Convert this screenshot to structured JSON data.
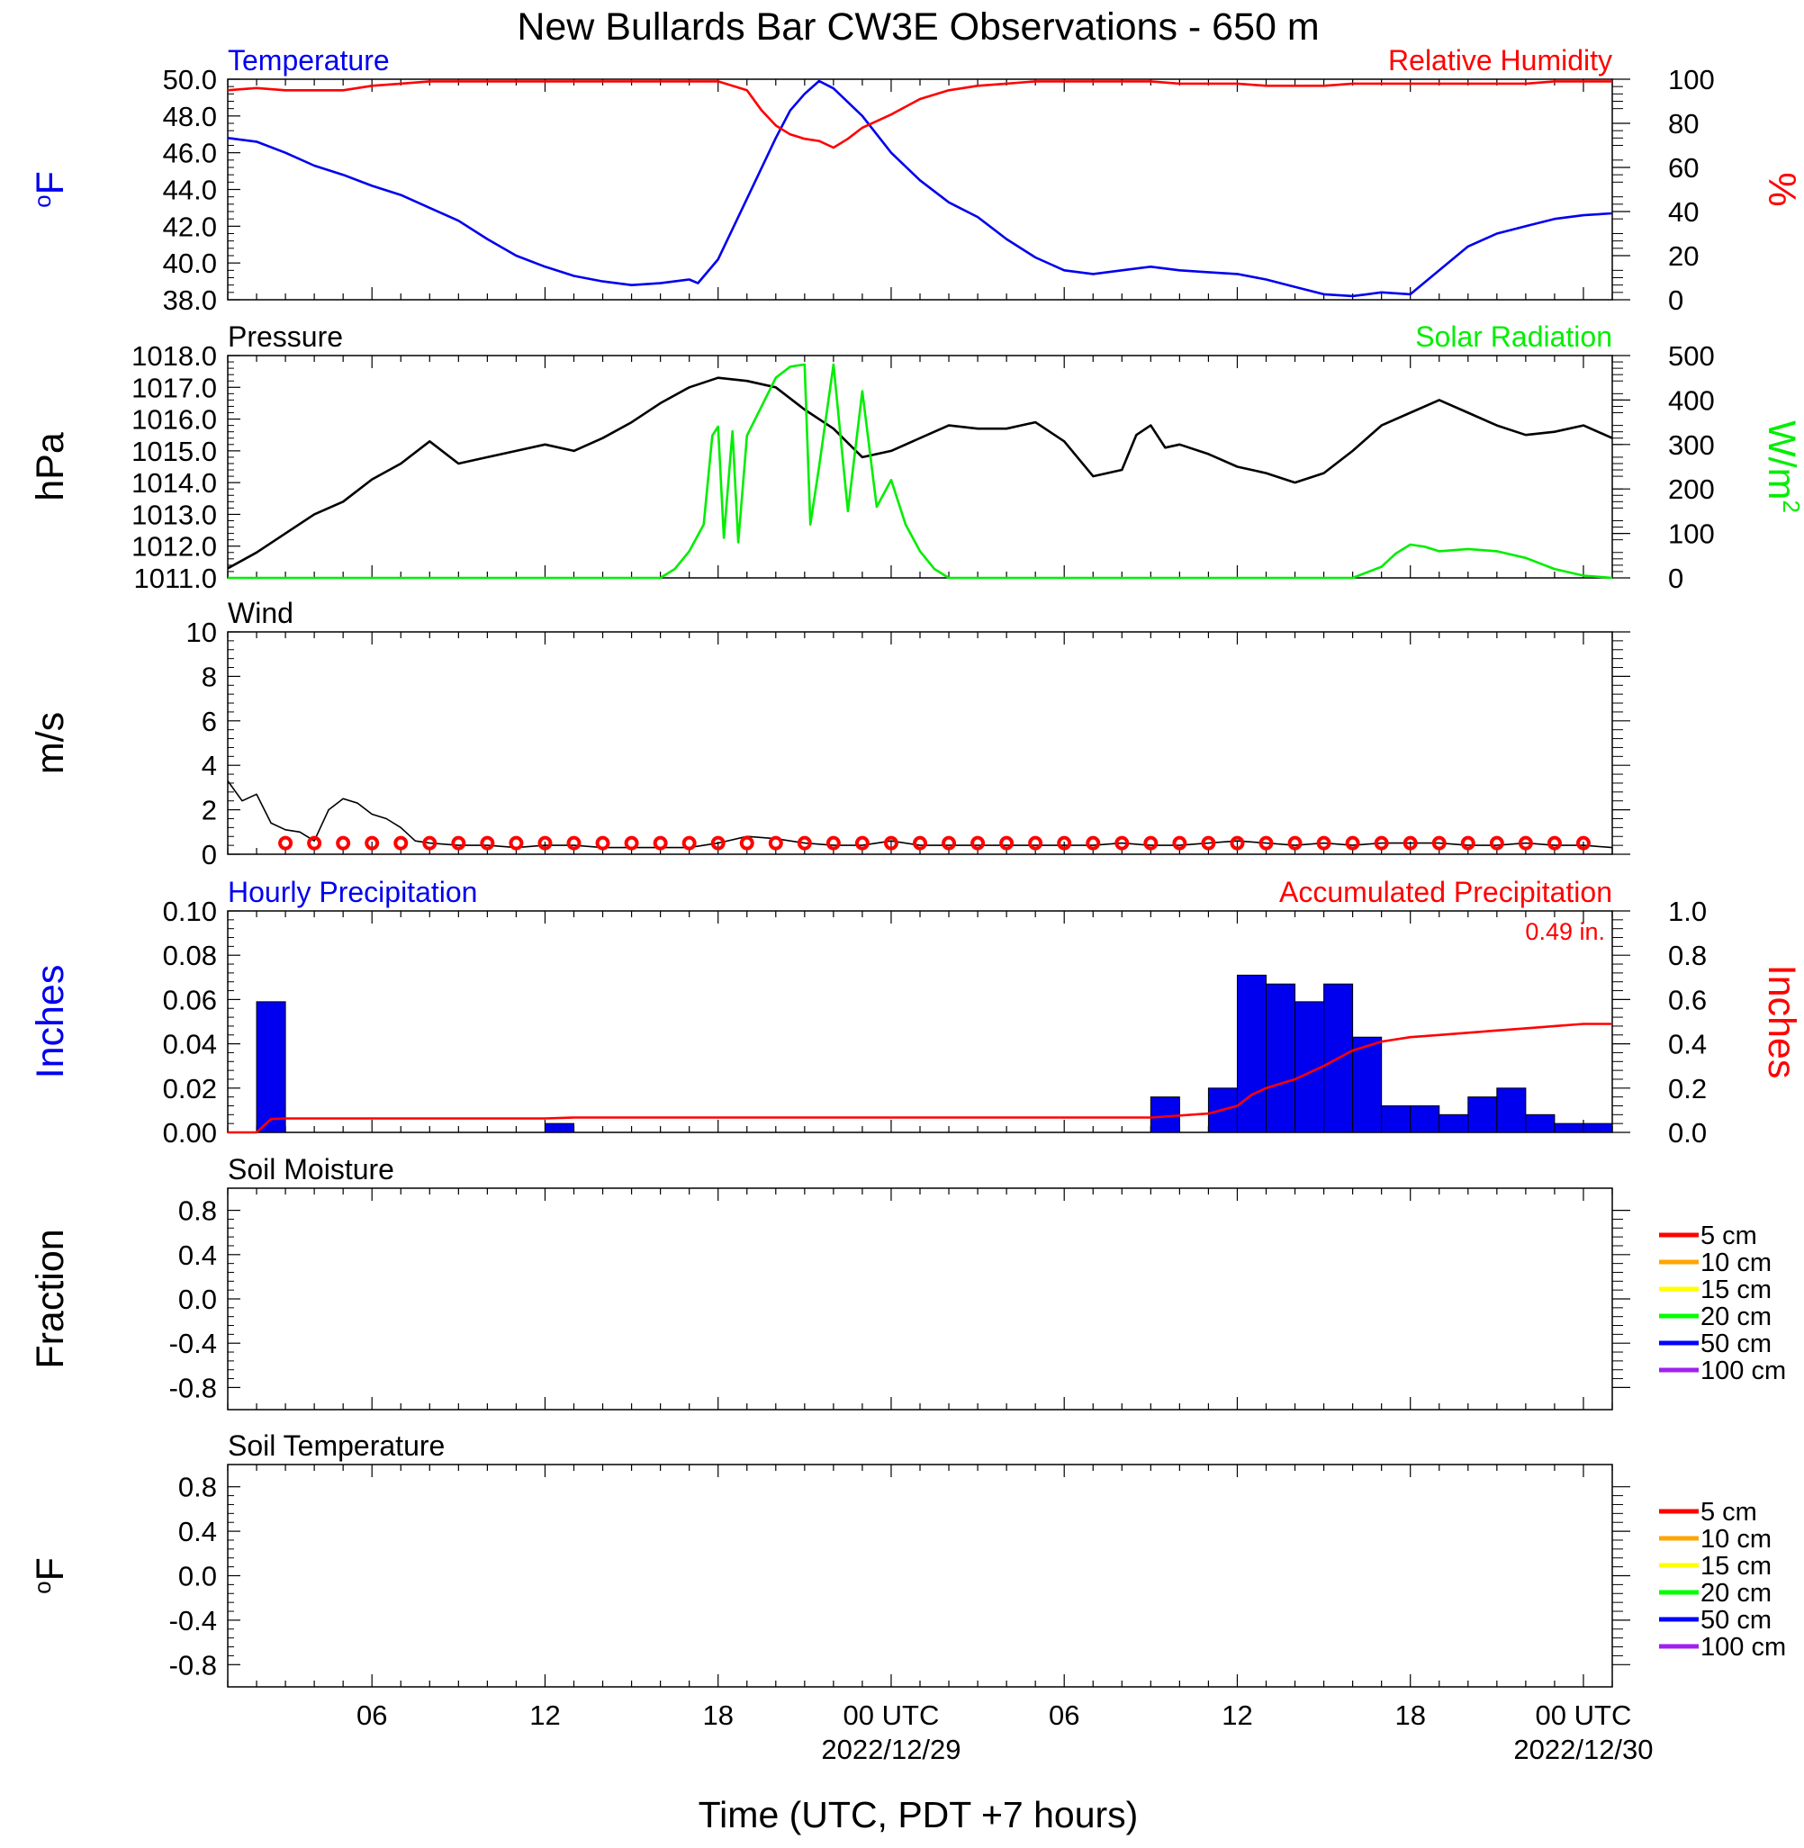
{
  "title": "New Bullards Bar CW3E Observations - 650 m",
  "x_axis": {
    "label": "Time (UTC, PDT +7 hours)",
    "range_hours": [
      0,
      48
    ],
    "tick_labels": [
      {
        "hour": 5,
        "text": "06",
        "date": ""
      },
      {
        "hour": 11,
        "text": "12",
        "date": ""
      },
      {
        "hour": 17,
        "text": "18",
        "date": ""
      },
      {
        "hour": 23,
        "text": "00 UTC",
        "date": "2022/12/29"
      },
      {
        "hour": 29,
        "text": "06",
        "date": ""
      },
      {
        "hour": 35,
        "text": "12",
        "date": ""
      },
      {
        "hour": 41,
        "text": "18",
        "date": ""
      },
      {
        "hour": 47,
        "text": "00 UTC",
        "date": "2022/12/30"
      }
    ]
  },
  "chart_data": [
    {
      "type": "line",
      "panel_title_left": "Temperature",
      "panel_title_right": "Relative Humidity",
      "ylabel_left": "oF",
      "ylabel_right": "%",
      "ylim_left": [
        38,
        50
      ],
      "ylim_right": [
        0,
        100
      ],
      "yticks_left": [
        "38.0",
        "40.0",
        "42.0",
        "44.0",
        "46.0",
        "48.0",
        "50.0"
      ],
      "yticks_right": [
        "0",
        "20",
        "40",
        "60",
        "80",
        "100"
      ],
      "series": [
        {
          "name": "Temperature",
          "color": "#0000ee",
          "axis": "left",
          "x": [
            0,
            1,
            2,
            3,
            4,
            5,
            6,
            7,
            8,
            9,
            10,
            11,
            12,
            13,
            14,
            15,
            16,
            16.3,
            17,
            18,
            19,
            19.5,
            20,
            20.5,
            21,
            22,
            23,
            24,
            25,
            26,
            27,
            28,
            29,
            30,
            31,
            32,
            33,
            34,
            35,
            36,
            37,
            38,
            39,
            39.5,
            40,
            41,
            42,
            43,
            44,
            45,
            46,
            47,
            48
          ],
          "y": [
            46.8,
            46.6,
            46.0,
            45.3,
            44.8,
            44.2,
            43.7,
            43.0,
            42.3,
            41.3,
            40.4,
            39.8,
            39.3,
            39.0,
            38.8,
            38.9,
            39.1,
            38.9,
            40.2,
            43.5,
            46.8,
            48.3,
            49.2,
            49.9,
            49.5,
            48.0,
            46.0,
            44.5,
            43.3,
            42.5,
            41.3,
            40.3,
            39.6,
            39.4,
            39.6,
            39.8,
            39.6,
            39.5,
            39.4,
            39.1,
            38.7,
            38.3,
            38.2,
            38.3,
            38.4,
            38.3,
            39.6,
            40.9,
            41.6,
            42.0,
            42.4,
            42.6,
            42.7
          ]
        },
        {
          "name": "Relative Humidity",
          "color": "#ff0000",
          "axis": "right",
          "x": [
            0,
            1,
            2,
            3,
            4,
            5,
            6,
            7,
            8,
            9,
            10,
            11,
            12,
            13,
            14,
            15,
            16,
            17,
            18,
            18.5,
            19,
            19.5,
            20,
            20.5,
            21,
            21.5,
            22,
            23,
            24,
            25,
            26,
            27,
            28,
            29,
            30,
            31,
            32,
            33,
            34,
            35,
            36,
            37,
            38,
            39,
            40,
            41,
            42,
            43,
            44,
            45,
            46,
            47,
            48
          ],
          "y": [
            95,
            96,
            95,
            95,
            95,
            97,
            98,
            99,
            99,
            99,
            99,
            99,
            99,
            99,
            99,
            99,
            99,
            99,
            95,
            86,
            79,
            75,
            73,
            72,
            69,
            73,
            78,
            84,
            91,
            95,
            97,
            98,
            99,
            99,
            99,
            99,
            99,
            98,
            98,
            98,
            97,
            97,
            97,
            98,
            98,
            98,
            98,
            98,
            98,
            98,
            99,
            99,
            99
          ]
        }
      ]
    },
    {
      "type": "line",
      "panel_title_left": "Pressure",
      "panel_title_right": "Solar Radiation",
      "ylabel_left": "hPa",
      "ylabel_right": "W/m2",
      "ylim_left": [
        1011,
        1018
      ],
      "ylim_right": [
        0,
        500
      ],
      "yticks_left": [
        "1011.0",
        "1012.0",
        "1013.0",
        "1014.0",
        "1015.0",
        "1016.0",
        "1017.0",
        "1018.0"
      ],
      "yticks_right": [
        "0",
        "100",
        "200",
        "300",
        "400",
        "500"
      ],
      "series": [
        {
          "name": "Pressure",
          "color": "#000000",
          "axis": "left",
          "x": [
            0,
            1,
            2,
            3,
            4,
            5,
            6,
            7,
            8,
            9,
            10,
            11,
            12,
            13,
            14,
            15,
            16,
            17,
            18,
            19,
            20,
            21,
            22,
            23,
            24,
            25,
            26,
            27,
            28,
            29,
            30,
            31,
            31.5,
            32,
            32.5,
            33,
            34,
            35,
            36,
            37,
            38,
            39,
            40,
            41,
            42,
            43,
            44,
            45,
            46,
            47,
            48
          ],
          "y": [
            1011.3,
            1011.8,
            1012.4,
            1013.0,
            1013.4,
            1014.1,
            1014.6,
            1015.3,
            1014.6,
            1014.8,
            1015.0,
            1015.2,
            1015.0,
            1015.4,
            1015.9,
            1016.5,
            1017.0,
            1017.3,
            1017.2,
            1017.0,
            1016.3,
            1015.7,
            1014.8,
            1015.0,
            1015.4,
            1015.8,
            1015.7,
            1015.7,
            1015.9,
            1015.3,
            1014.2,
            1014.4,
            1015.5,
            1015.8,
            1015.1,
            1015.2,
            1014.9,
            1014.5,
            1014.3,
            1014.0,
            1014.3,
            1015.0,
            1015.8,
            1016.2,
            1016.6,
            1016.2,
            1015.8,
            1015.5,
            1015.6,
            1015.8,
            1015.4
          ]
        },
        {
          "name": "Solar Radiation",
          "color": "#00ee00",
          "axis": "right",
          "x": [
            0,
            14,
            15,
            15.5,
            16,
            16.5,
            16.8,
            17,
            17.2,
            17.5,
            17.7,
            18,
            19,
            19.5,
            20,
            20.2,
            20.5,
            21,
            21.5,
            22,
            22.5,
            23,
            23.5,
            24,
            24.5,
            25,
            26,
            30,
            35,
            39,
            40,
            40.5,
            41,
            41.5,
            42,
            43,
            44,
            45,
            46,
            47,
            48
          ],
          "y": [
            0,
            0,
            0,
            20,
            60,
            120,
            320,
            340,
            90,
            330,
            80,
            320,
            450,
            475,
            480,
            120,
            250,
            480,
            150,
            420,
            160,
            220,
            120,
            60,
            20,
            0,
            0,
            0,
            0,
            0,
            25,
            55,
            75,
            70,
            60,
            65,
            60,
            45,
            20,
            5,
            0
          ]
        }
      ]
    },
    {
      "type": "line",
      "panel_title_left": "Wind",
      "ylabel_left": "m/s",
      "ylim_left": [
        0,
        10
      ],
      "yticks_left": [
        "0",
        "2",
        "4",
        "6",
        "8",
        "10"
      ],
      "series": [
        {
          "name": "Wind",
          "color": "#000000",
          "axis": "left",
          "x": [
            0,
            0.5,
            1,
            1.5,
            2,
            2.5,
            3,
            3.5,
            4,
            4.5,
            5,
            5.5,
            6,
            6.5,
            7,
            8,
            9,
            10,
            11,
            12,
            13,
            14,
            15,
            16,
            17,
            18,
            19,
            20,
            21,
            22,
            23,
            24,
            25,
            26,
            27,
            28,
            29,
            30,
            31,
            32,
            33,
            34,
            35,
            36,
            37,
            38,
            39,
            40,
            41,
            42,
            43,
            44,
            45,
            46,
            47,
            48
          ],
          "y": [
            3.3,
            2.4,
            2.7,
            1.4,
            1.1,
            1.0,
            0.6,
            2.0,
            2.5,
            2.3,
            1.8,
            1.6,
            1.2,
            0.6,
            0.5,
            0.4,
            0.4,
            0.3,
            0.4,
            0.4,
            0.3,
            0.3,
            0.3,
            0.3,
            0.5,
            0.8,
            0.7,
            0.5,
            0.4,
            0.4,
            0.6,
            0.4,
            0.4,
            0.4,
            0.4,
            0.4,
            0.4,
            0.4,
            0.5,
            0.4,
            0.4,
            0.5,
            0.6,
            0.5,
            0.4,
            0.5,
            0.4,
            0.5,
            0.5,
            0.5,
            0.4,
            0.4,
            0.5,
            0.4,
            0.4,
            0.3
          ]
        },
        {
          "name": "Wind direction barbs",
          "color": "#ff0000",
          "axis": "left",
          "x": [
            2,
            3,
            4,
            5,
            6,
            7,
            8,
            9,
            10,
            11,
            12,
            13,
            14,
            15,
            16,
            17,
            18,
            19,
            20,
            21,
            22,
            23,
            24,
            25,
            26,
            27,
            28,
            29,
            30,
            31,
            32,
            33,
            34,
            35,
            36,
            37,
            38,
            39,
            40,
            41,
            42,
            43,
            44,
            45,
            46,
            47
          ],
          "y": [
            0.5,
            0.5,
            0.5,
            0.5,
            0.5,
            0.5,
            0.5,
            0.5,
            0.5,
            0.5,
            0.5,
            0.5,
            0.5,
            0.5,
            0.5,
            0.5,
            0.5,
            0.5,
            0.5,
            0.5,
            0.5,
            0.5,
            0.5,
            0.5,
            0.5,
            0.5,
            0.5,
            0.5,
            0.5,
            0.5,
            0.5,
            0.5,
            0.5,
            0.5,
            0.5,
            0.5,
            0.5,
            0.5,
            0.5,
            0.5,
            0.5,
            0.5,
            0.5,
            0.5,
            0.5,
            0.5
          ]
        }
      ]
    },
    {
      "type": "bar",
      "panel_title_left": "Hourly Precipitation",
      "panel_title_right": "Accumulated Precipitation",
      "annotation": "0.49 in.",
      "ylabel_left": "Inches",
      "ylabel_right": "Inches",
      "ylim_left": [
        0,
        0.1
      ],
      "ylim_right": [
        0,
        1.0
      ],
      "yticks_left": [
        "0.00",
        "0.02",
        "0.04",
        "0.06",
        "0.08",
        "0.10"
      ],
      "yticks_right": [
        "0.0",
        "0.2",
        "0.4",
        "0.6",
        "0.8",
        "1.0"
      ],
      "series": [
        {
          "name": "Hourly Precipitation",
          "color": "#0000ee",
          "axis": "left",
          "x": [
            1,
            11,
            32,
            34,
            35,
            36,
            37,
            38,
            39,
            40,
            41,
            42,
            43,
            44,
            45,
            46,
            47
          ],
          "values": [
            0.059,
            0.004,
            0.016,
            0.02,
            0.071,
            0.067,
            0.059,
            0.067,
            0.043,
            0.012,
            0.012,
            0.008,
            0.016,
            0.02,
            0.008,
            0.004,
            0.004
          ]
        },
        {
          "name": "Accumulated Precipitation",
          "color": "#ff0000",
          "axis": "right",
          "x": [
            0,
            1,
            1.5,
            2,
            11,
            12,
            32,
            34,
            35,
            35.5,
            36,
            37,
            38,
            39,
            40,
            41,
            42,
            43,
            44,
            45,
            46,
            47,
            48
          ],
          "y": [
            0,
            0,
            0.06,
            0.063,
            0.063,
            0.067,
            0.067,
            0.085,
            0.12,
            0.17,
            0.2,
            0.24,
            0.3,
            0.37,
            0.41,
            0.43,
            0.44,
            0.45,
            0.46,
            0.47,
            0.48,
            0.49,
            0.49
          ]
        }
      ]
    },
    {
      "type": "line",
      "panel_title_left": "Soil Moisture",
      "ylabel_left": "Fraction",
      "ylim_left": [
        -1,
        1
      ],
      "yticks_left": [
        "-0.8",
        "-0.4",
        "0.0",
        "0.4",
        "0.8"
      ],
      "legend": [
        {
          "label": "5 cm",
          "color": "#ff0000"
        },
        {
          "label": "10 cm",
          "color": "#ffa500"
        },
        {
          "label": "15 cm",
          "color": "#ffff00"
        },
        {
          "label": "20 cm",
          "color": "#00ff00"
        },
        {
          "label": "50 cm",
          "color": "#0000ff"
        },
        {
          "label": "100 cm",
          "color": "#a020f0"
        }
      ]
    },
    {
      "type": "line",
      "panel_title_left": "Soil Temperature",
      "ylabel_left": "oF",
      "ylim_left": [
        -1,
        1
      ],
      "yticks_left": [
        "-0.8",
        "-0.4",
        "0.0",
        "0.4",
        "0.8"
      ],
      "legend": [
        {
          "label": "5 cm",
          "color": "#ff0000"
        },
        {
          "label": "10 cm",
          "color": "#ffa500"
        },
        {
          "label": "15 cm",
          "color": "#ffff00"
        },
        {
          "label": "20 cm",
          "color": "#00ff00"
        },
        {
          "label": "50 cm",
          "color": "#0000ff"
        },
        {
          "label": "100 cm",
          "color": "#a020f0"
        }
      ]
    }
  ]
}
